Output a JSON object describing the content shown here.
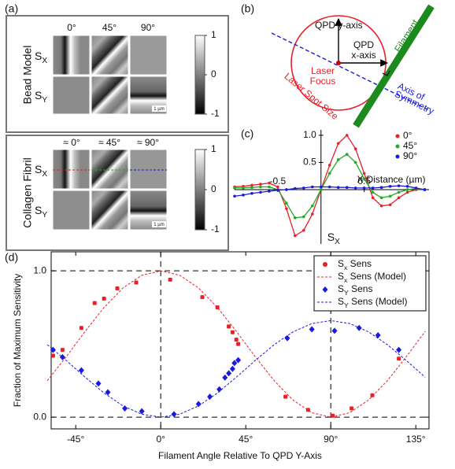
{
  "panel_a": {
    "label": "(a)",
    "top": {
      "title": "Bead Model",
      "columns": [
        "0°",
        "45°",
        "90°"
      ],
      "rows": [
        "SX",
        "SY"
      ],
      "scale_bar": "1 µm",
      "colorbar_ticks": [
        1,
        0,
        -1
      ]
    },
    "bottom": {
      "title": "Collagen Fibril",
      "columns": [
        "≈ 0°",
        "≈ 45°",
        "≈ 90°"
      ],
      "rows": [
        "SX",
        "SY"
      ],
      "scale_bar": "1 µm",
      "colorbar_ticks": [
        1,
        0,
        -1
      ]
    }
  },
  "panel_b": {
    "label": "(b)",
    "qpd_y_axis": "QPD y-axis",
    "qpd_x_axis": [
      "QPD",
      "x-axis"
    ],
    "filament": "Filament",
    "laser_focus": [
      "Laser",
      "Focus"
    ],
    "laser_spot_size": "Laser Spot Size",
    "axis_of_symmetry": [
      "Axis of",
      "Symmetry"
    ]
  },
  "chart_data": [
    {
      "type": "line",
      "label": "(c)",
      "x_label": "X-Distance (µm)",
      "y_label": "SX",
      "x": [
        -1,
        -0.9,
        -0.8,
        -0.7,
        -0.6,
        -0.5,
        -0.4,
        -0.3,
        -0.2,
        -0.1,
        0,
        0.1,
        0.2,
        0.3,
        0.4,
        0.5,
        0.6,
        0.7,
        0.8,
        0.9,
        1.0,
        1.1,
        1.2
      ],
      "series": [
        {
          "name": "0°",
          "color": "#e8202a",
          "values": [
            0.05,
            0.06,
            0.08,
            0.1,
            0.12,
            0.05,
            -0.35,
            -0.85,
            -0.75,
            -0.45,
            0,
            0.45,
            0.85,
            1.0,
            0.75,
            0.3,
            -0.15,
            -0.3,
            -0.28,
            -0.15,
            -0.05,
            0,
            0
          ]
        },
        {
          "name": "45°",
          "color": "#22aa22",
          "values": [
            0.03,
            0.03,
            0.04,
            0.05,
            0.05,
            0,
            -0.25,
            -0.52,
            -0.5,
            -0.3,
            0,
            0.3,
            0.55,
            0.65,
            0.5,
            0.2,
            -0.05,
            -0.15,
            -0.12,
            -0.05,
            0,
            0.02,
            0
          ]
        },
        {
          "name": "90°",
          "color": "#1a1adb",
          "values": [
            -0.12,
            -0.1,
            -0.07,
            -0.05,
            -0.03,
            -0.01,
            0,
            0.02,
            0.03,
            0.05,
            0.05,
            0.05,
            0.04,
            0.04,
            0.03,
            0.03,
            0.03,
            0.04,
            0.06,
            0.07,
            0.06,
            0.03,
            0
          ]
        }
      ],
      "xlim": [
        -1.0,
        1.25
      ],
      "ylim": [
        -1.0,
        1.1
      ],
      "xticks": [
        -0.5,
        0.5
      ],
      "yticks": [
        0.5,
        {
          "value": 1,
          "label": "1.0"
        }
      ],
      "legend": "upper right"
    },
    {
      "type": "scatter",
      "label": "(d)",
      "x_label": "Filament Angle Relative To QPD Y-Axis",
      "y_label": "Fraction of Maximum Sensitivity",
      "series": [
        {
          "name": "Sx Sens",
          "color": "#e8202a",
          "mode": "markers",
          "marker": "circle",
          "x": [
            -57,
            -52,
            -42,
            -35,
            -30,
            -23,
            -13,
            5,
            22,
            30,
            36,
            38,
            40,
            41,
            66,
            78,
            91,
            101,
            112,
            126
          ],
          "values": [
            0.42,
            0.46,
            0.61,
            0.78,
            0.81,
            0.88,
            0.92,
            0.94,
            0.82,
            0.75,
            0.62,
            0.58,
            0.53,
            0.5,
            0.14,
            0.05,
            0.01,
            0.06,
            0.15,
            0.4
          ]
        },
        {
          "name": "Sx Sens (Model)",
          "color": "#e8202a",
          "mode": "dashed",
          "x": [
            -60,
            -50,
            -40,
            -30,
            -20,
            -10,
            0,
            10,
            20,
            30,
            40,
            50,
            60,
            70,
            80,
            90,
            100,
            110,
            120,
            130,
            140
          ],
          "values": [
            0.25,
            0.413,
            0.587,
            0.75,
            0.883,
            0.97,
            1,
            0.97,
            0.883,
            0.75,
            0.587,
            0.413,
            0.25,
            0.117,
            0.03,
            0,
            0.03,
            0.117,
            0.25,
            0.413,
            0.587
          ]
        },
        {
          "name": "SY Sens",
          "color": "#1a1adb",
          "mode": "markers",
          "marker": "diamond",
          "x": [
            -57,
            -52,
            -42,
            -33,
            -28,
            -19,
            -10,
            7,
            20,
            26,
            31,
            34,
            36,
            38,
            39,
            41,
            67,
            80,
            92,
            105,
            115,
            126
          ],
          "values": [
            0.46,
            0.41,
            0.32,
            0.23,
            0.17,
            0.06,
            0.04,
            0.02,
            0.09,
            0.14,
            0.19,
            0.27,
            0.3,
            0.33,
            0.37,
            0.39,
            0.54,
            0.6,
            0.59,
            0.61,
            0.56,
            0.46
          ]
        },
        {
          "name": "SY Sens (Model)",
          "color": "#1a1adb",
          "mode": "dashed",
          "x": [
            -60,
            -50,
            -40,
            -30,
            -20,
            -10,
            0,
            10,
            20,
            30,
            40,
            50,
            60,
            70,
            80,
            90,
            100,
            110,
            120,
            130,
            140
          ],
          "values": [
            0.495,
            0.387,
            0.273,
            0.165,
            0.077,
            0.02,
            0,
            0.02,
            0.077,
            0.165,
            0.273,
            0.387,
            0.495,
            0.583,
            0.64,
            0.66,
            0.64,
            0.583,
            0.495,
            0.387,
            0.273
          ]
        }
      ],
      "xlim": [
        -58,
        142
      ],
      "ylim": [
        -0.08,
        1.13
      ],
      "xticks": [
        {
          "value": -45,
          "label": "-45°"
        },
        {
          "value": 0,
          "label": "0°"
        },
        {
          "value": 45,
          "label": "45°"
        },
        {
          "value": 90,
          "label": "90°"
        },
        {
          "value": 135,
          "label": "135°"
        }
      ],
      "yticks": [
        {
          "value": 0,
          "label": "0.0"
        },
        {
          "value": 1,
          "label": "1.0"
        }
      ],
      "ref_lines": {
        "x": [
          0,
          90
        ],
        "y": [
          0,
          1
        ]
      },
      "legend": "upper right"
    }
  ]
}
